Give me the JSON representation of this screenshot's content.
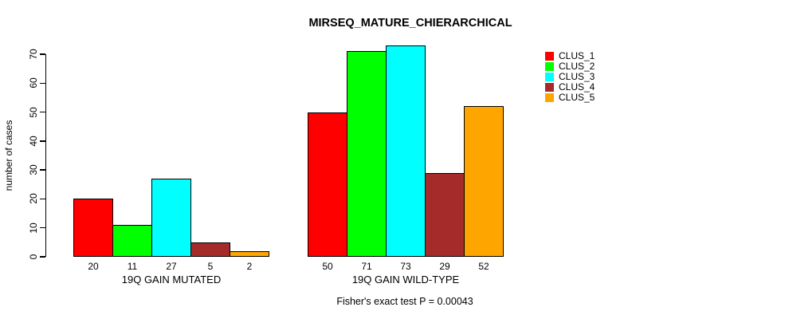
{
  "chart_data": {
    "type": "bar",
    "title": "MIRSEQ_MATURE_CHIERARCHICAL",
    "subtitle": "Fisher's exact test P = 0.00043",
    "ylabel": "number of cases",
    "xlabel": "",
    "ylim": [
      0,
      70
    ],
    "yticks": [
      0,
      10,
      20,
      30,
      40,
      50,
      60,
      70
    ],
    "grid": false,
    "legend_position": "top-right",
    "bar_value_labels": true,
    "categories": [
      "19Q GAIN MUTATED",
      "19Q GAIN WILD-TYPE"
    ],
    "series": [
      {
        "name": "CLUS_1",
        "color": "#ff0000",
        "values": [
          20,
          50
        ]
      },
      {
        "name": "CLUS_2",
        "color": "#00ff00",
        "values": [
          11,
          71
        ]
      },
      {
        "name": "CLUS_3",
        "color": "#00ffff",
        "values": [
          27,
          73
        ]
      },
      {
        "name": "CLUS_4",
        "color": "#a52a2a",
        "values": [
          5,
          29
        ]
      },
      {
        "name": "CLUS_5",
        "color": "#ffa500",
        "values": [
          2,
          52
        ]
      }
    ]
  }
}
